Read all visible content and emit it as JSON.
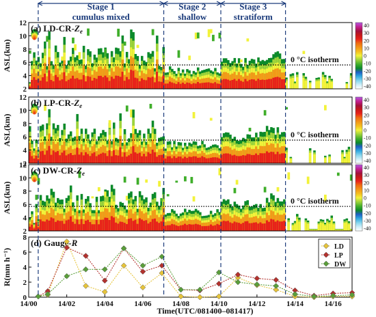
{
  "stages": [
    {
      "line1": "Stage 1",
      "line2": "cumulus mixed"
    },
    {
      "line1": "Stage 2",
      "line2": "shallow"
    },
    {
      "line1": "Stage 3",
      "line2": "stratiform"
    }
  ],
  "radar_panels": [
    {
      "label_main": "(a) LD-CR-",
      "label_sym": "Z",
      "label_sub": "e"
    },
    {
      "label_main": "(b) LP-CR-",
      "label_sym": "Z",
      "label_sub": "e"
    },
    {
      "label_main": "(c) DW-CR-",
      "label_sym": "Z",
      "label_sub": "e"
    }
  ],
  "isotherm_label": "0 °C isotherm",
  "radar_ylabel": "ASL(km)",
  "radar_yticks": [
    2,
    4,
    6,
    8,
    10,
    12
  ],
  "colorbar_ticks": [
    40,
    30,
    20,
    10,
    0,
    -10,
    -20,
    -30,
    -40
  ],
  "colorbar_colors": [
    "#ffffff",
    "#cfeff8",
    "#8ad8ee",
    "#2ea7e0",
    "#1f5fc4",
    "#0c8a2a",
    "#3fae2a",
    "#9fd43b",
    "#f2f23a",
    "#f4c020",
    "#f39a18",
    "#ef6a12",
    "#e8221a",
    "#c81818",
    "#a3123a",
    "#c21d8a",
    "#d94fcb",
    "#b45ae0"
  ],
  "gauge_label": "(d) Gauge-",
  "gauge_label_sym": "R",
  "gauge_ylabel": "R(mm h⁻¹)",
  "xlabel": "Time(UTC/081400–081417)",
  "chart_data": {
    "type": "line",
    "x_ticks": [
      "14/00",
      "14/02",
      "14/04",
      "14/06",
      "14/08",
      "14/10",
      "14/12",
      "14/14",
      "14/16"
    ],
    "x": [
      0.5,
      1,
      2,
      3,
      4,
      5,
      6,
      7,
      8,
      9,
      10,
      11,
      12,
      13,
      14,
      15,
      16,
      17
    ],
    "ylim": [
      0,
      8
    ],
    "yticks": [
      0,
      2,
      4,
      6,
      8
    ],
    "series": [
      {
        "name": "LD",
        "color": "#e6c43a",
        "values": [
          0.1,
          0.3,
          7.4,
          1.5,
          0.7,
          4.2,
          1.3,
          3.2,
          0.1,
          0.0,
          0.1,
          2.6,
          1.6,
          1.0,
          0.1,
          0.0,
          0.1,
          0.1
        ]
      },
      {
        "name": "LP",
        "color": "#b3322e",
        "values": [
          0.1,
          0.8,
          6.6,
          5.5,
          2.2,
          6.5,
          3.4,
          4.2,
          1.0,
          0.9,
          1.8,
          3.0,
          2.5,
          2.3,
          0.9,
          0.2,
          0.5,
          0.6
        ]
      },
      {
        "name": "DW",
        "color": "#5a9e3a",
        "values": [
          0.1,
          0.4,
          2.8,
          3.7,
          3.7,
          6.5,
          4.2,
          5.4,
          1.0,
          1.0,
          3.3,
          2.0,
          1.7,
          1.5,
          0.4,
          0.1,
          0.2,
          0.3
        ]
      }
    ],
    "legend_position": "top-right"
  }
}
